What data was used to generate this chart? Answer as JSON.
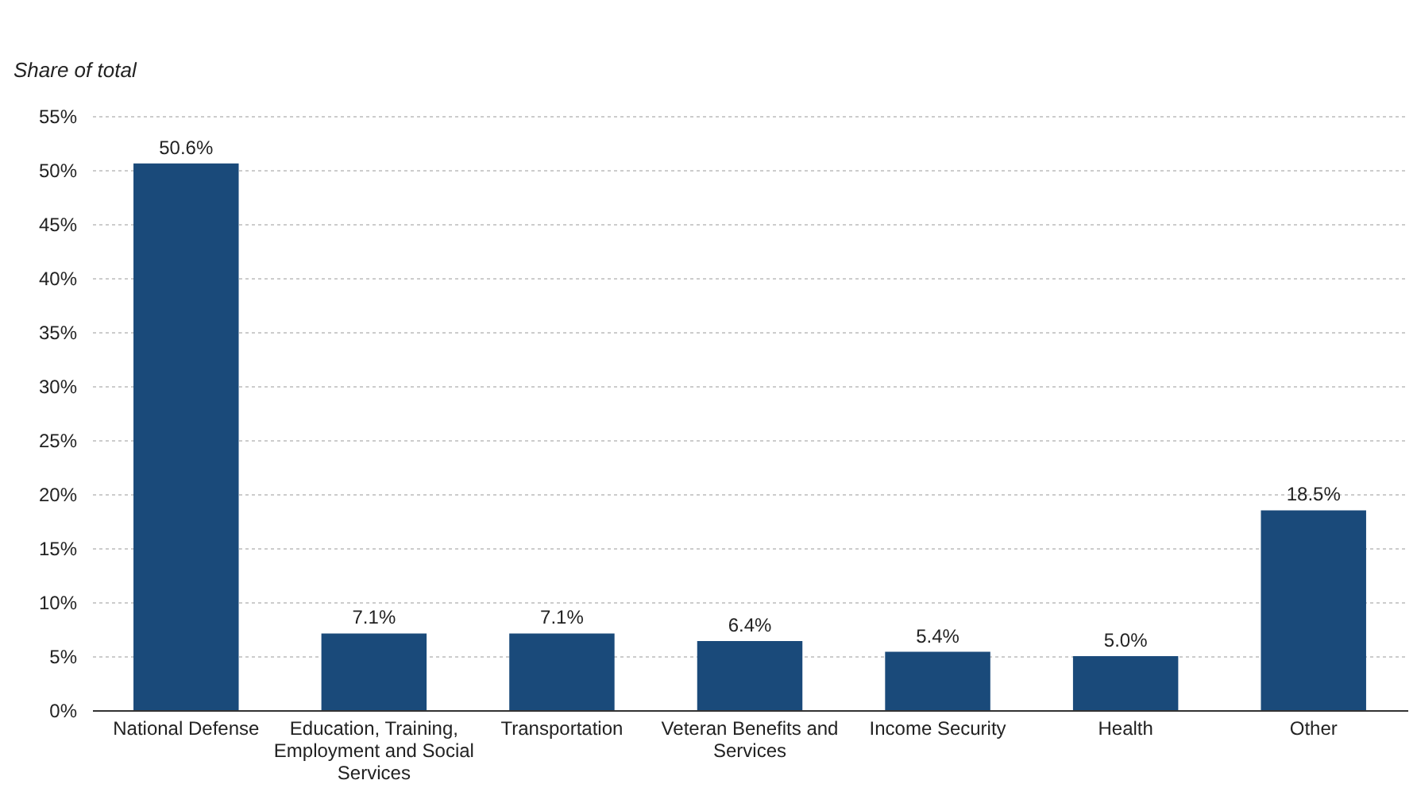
{
  "chart_data": {
    "type": "bar",
    "ylabel": "Share of total",
    "categories": [
      "National Defense",
      "Education, Training, Employment and Social Services",
      "Transportation",
      "Veteran Benefits and Services",
      "Income Security",
      "Health",
      "Other"
    ],
    "values": [
      50.6,
      7.1,
      7.1,
      6.4,
      5.4,
      5.0,
      18.5
    ],
    "value_labels": [
      "50.6%",
      "7.1%",
      "7.1%",
      "6.4%",
      "5.4%",
      "5.0%",
      "18.5%"
    ],
    "color": "#1a4a7a",
    "ylim": [
      0,
      55
    ],
    "yticks": [
      {
        "value": 0,
        "label": "0%"
      },
      {
        "value": 5,
        "label": "5%"
      },
      {
        "value": 10,
        "label": "10%"
      },
      {
        "value": 15,
        "label": "15%"
      },
      {
        "value": 20,
        "label": "20%"
      },
      {
        "value": 25,
        "label": "25%"
      },
      {
        "value": 30,
        "label": "30%"
      },
      {
        "value": 35,
        "label": "35%"
      },
      {
        "value": 40,
        "label": "40%"
      },
      {
        "value": 45,
        "label": "45%"
      },
      {
        "value": 50,
        "label": "50%"
      },
      {
        "value": 55,
        "label": "55%"
      }
    ],
    "grid": "y"
  }
}
